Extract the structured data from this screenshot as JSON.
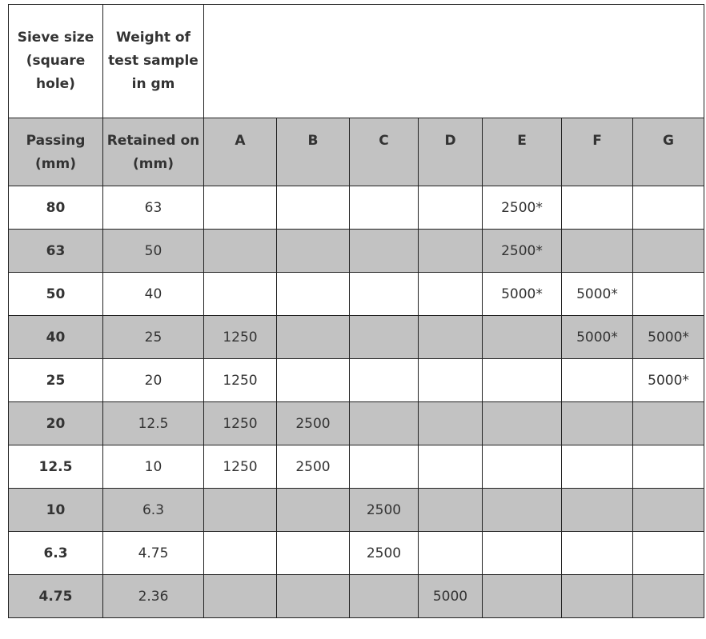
{
  "table": {
    "header_top": {
      "sieve_size": "Sieve size (square hole)",
      "weight": "Weight of test sample in gm"
    },
    "header_sub": {
      "passing": "Passing (mm)",
      "retained": "Retained on (mm)",
      "grades": [
        "A",
        "B",
        "C",
        "D",
        "E",
        "F",
        "G"
      ]
    },
    "rows": [
      {
        "passing": "80",
        "retained": "63",
        "cells": [
          "",
          "",
          "",
          "",
          "2500*",
          "",
          ""
        ]
      },
      {
        "passing": "63",
        "retained": "50",
        "cells": [
          "",
          "",
          "",
          "",
          "2500*",
          "",
          ""
        ]
      },
      {
        "passing": "50",
        "retained": "40",
        "cells": [
          "",
          "",
          "",
          "",
          "5000*",
          "5000*",
          ""
        ]
      },
      {
        "passing": "40",
        "retained": "25",
        "cells": [
          "1250",
          "",
          "",
          "",
          "",
          "5000*",
          "5000*"
        ]
      },
      {
        "passing": "25",
        "retained": "20",
        "cells": [
          "1250",
          "",
          "",
          "",
          "",
          "",
          "5000*"
        ]
      },
      {
        "passing": "20",
        "retained": "12.5",
        "cells": [
          "1250",
          "2500",
          "",
          "",
          "",
          "",
          ""
        ]
      },
      {
        "passing": "12.5",
        "retained": "10",
        "cells": [
          "1250",
          "2500",
          "",
          "",
          "",
          "",
          ""
        ]
      },
      {
        "passing": "10",
        "retained": "6.3",
        "cells": [
          "",
          "",
          "2500",
          "",
          "",
          "",
          ""
        ]
      },
      {
        "passing": "6.3",
        "retained": "4.75",
        "cells": [
          "",
          "",
          "2500",
          "",
          "",
          "",
          ""
        ]
      },
      {
        "passing": "4.75",
        "retained": "2.36",
        "cells": [
          "",
          "",
          "",
          "5000",
          "",
          "",
          ""
        ]
      }
    ]
  }
}
